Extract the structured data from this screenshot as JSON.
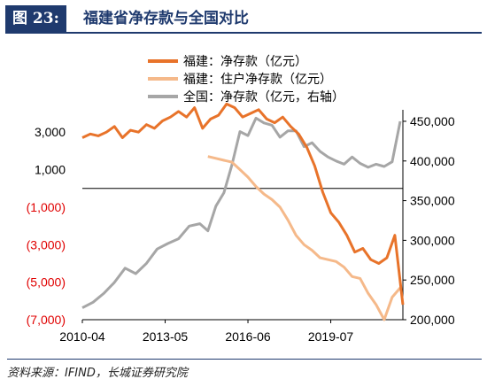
{
  "header": {
    "fig_label": "图 23:",
    "title": "福建省净存款与全国对比"
  },
  "source": "资料来源：IFIND，长城证券研究院",
  "chart_data": {
    "type": "line",
    "x_tick_labels": [
      "2010-04",
      "2013-05",
      "2016-06",
      "2019-07"
    ],
    "left_axis": {
      "ylim": [
        -7000,
        4000
      ],
      "ticks": [
        3000,
        1000,
        -1000,
        -3000,
        -5000,
        -7000
      ],
      "tick_labels": [
        "3,000",
        "1,000",
        "(1,000)",
        "(3,000)",
        "(5,000)",
        "(7,000)"
      ],
      "positive_color": "#000000",
      "negative_color": "#e00000"
    },
    "right_axis": {
      "ylim": [
        200000,
        460000
      ],
      "ticks": [
        450000,
        400000,
        350000,
        300000,
        250000,
        200000
      ],
      "tick_labels": [
        "450,000",
        "400,000",
        "350,000",
        "300,000",
        "250,000",
        "200,000"
      ]
    },
    "legend_position": "top-center",
    "series": [
      {
        "name": "福建：净存款（亿元）",
        "axis": "left",
        "color": "#e8732a",
        "width": 3,
        "x": [
          0.0,
          0.3,
          0.6,
          0.9,
          1.2,
          1.5,
          1.8,
          2.1,
          2.4,
          2.7,
          3.0,
          3.3,
          3.6,
          3.9,
          4.2,
          4.5,
          4.8,
          5.1,
          5.4,
          5.7,
          6.0,
          6.3,
          6.6,
          6.9,
          7.2,
          7.5,
          7.8,
          8.1,
          8.4,
          8.7,
          9.0,
          9.3,
          9.6,
          9.9,
          10.2,
          10.5,
          10.8,
          11.1,
          11.4,
          11.7,
          12.0
        ],
        "y": [
          2700,
          2900,
          2800,
          3000,
          3300,
          2700,
          3100,
          3000,
          3400,
          3200,
          3600,
          3800,
          4100,
          3800,
          4300,
          3200,
          3700,
          3900,
          4500,
          4300,
          3800,
          4000,
          4200,
          3700,
          3500,
          3800,
          3300,
          2900,
          2200,
          1200,
          -200,
          -1300,
          -1800,
          -2500,
          -3400,
          -3200,
          -3800,
          -4000,
          -3700,
          -2500,
          -6200
        ]
      },
      {
        "name": "福建：住户净存款（亿元）",
        "axis": "left",
        "color": "#f5b98a",
        "width": 3,
        "x": [
          4.7,
          5.0,
          5.3,
          5.6,
          5.9,
          6.2,
          6.5,
          6.8,
          7.1,
          7.4,
          7.7,
          8.0,
          8.3,
          8.6,
          8.9,
          9.2,
          9.5,
          9.8,
          10.1,
          10.4,
          10.7,
          11.0,
          11.3,
          11.6,
          11.9
        ],
        "y": [
          1700,
          1600,
          1500,
          1400,
          1000,
          600,
          100,
          -300,
          -600,
          -1000,
          -1700,
          -2500,
          -3000,
          -3300,
          -3700,
          -3800,
          -3900,
          -4200,
          -4700,
          -4800,
          -5600,
          -6200,
          -7000,
          -5800,
          -5300
        ]
      },
      {
        "name": "全国：净存款（亿元，右轴）",
        "axis": "right",
        "color": "#a6a6a6",
        "width": 3,
        "x": [
          0.0,
          0.4,
          0.8,
          1.2,
          1.6,
          2.0,
          2.4,
          2.8,
          3.2,
          3.6,
          4.0,
          4.4,
          4.7,
          5.0,
          5.3,
          5.6,
          5.9,
          6.2,
          6.5,
          6.8,
          7.1,
          7.4,
          7.7,
          8.0,
          8.3,
          8.6,
          8.9,
          9.2,
          9.5,
          9.8,
          10.1,
          10.4,
          10.7,
          11.0,
          11.3,
          11.6,
          11.9
        ],
        "y": [
          215000,
          222000,
          233000,
          247000,
          265000,
          258000,
          271000,
          289000,
          296000,
          302000,
          318000,
          321000,
          312000,
          343000,
          360000,
          395000,
          437000,
          432000,
          454000,
          448000,
          445000,
          430000,
          438000,
          438000,
          418000,
          423000,
          412000,
          405000,
          400000,
          396000,
          405000,
          397000,
          392000,
          396000,
          393000,
          399000,
          450000
        ]
      }
    ]
  }
}
